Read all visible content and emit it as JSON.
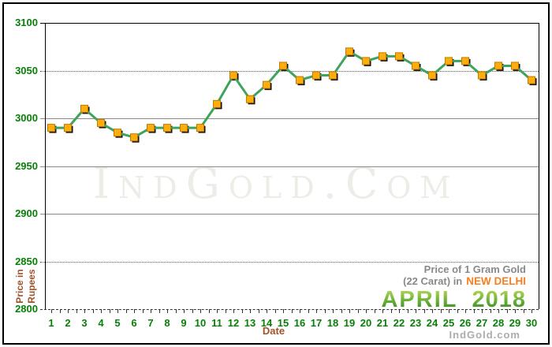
{
  "watermark": "IndGold.Com",
  "footer_brand": "IndGold.com",
  "annotation": {
    "line1": "Price of 1 Gram Gold",
    "line2_prefix": "(22 Carat) in",
    "line2_highlight": "NEW DELHI",
    "month": "APRIL",
    "year": "2018"
  },
  "axes": {
    "y_title_line1": "Price in",
    "y_title_line2": "Rupees",
    "x_title": "Date"
  },
  "colors": {
    "tick_label_green": "#088008",
    "axis_title_brown": "#A0522D",
    "annotation_gray": "#898989",
    "city_orange": "#F57F21",
    "line_green": "#3EA35C",
    "marker_fill": "#FFAD0D",
    "marker_border": "#BF7B00",
    "watermark_gray": "#EDEDE7",
    "footer_gray": "#ACACAC"
  },
  "chart_data": {
    "type": "line",
    "title": "Price of 1 Gram Gold (22 Carat) in NEW DELHI - APRIL 2018",
    "xlabel": "Date",
    "ylabel": "Price in Rupees",
    "x": [
      1,
      2,
      3,
      4,
      5,
      6,
      7,
      8,
      9,
      10,
      11,
      12,
      13,
      14,
      15,
      16,
      17,
      18,
      19,
      20,
      21,
      22,
      23,
      24,
      25,
      26,
      27,
      28,
      29,
      30
    ],
    "values": [
      2990,
      2990,
      3010,
      2995,
      2985,
      2980,
      2990,
      2990,
      2990,
      2990,
      3015,
      3045,
      3020,
      3035,
      3055,
      3040,
      3045,
      3045,
      3070,
      3060,
      3065,
      3065,
      3055,
      3045,
      3060,
      3060,
      3045,
      3055,
      3055,
      3040
    ],
    "ylim": [
      2800,
      3100
    ],
    "y_ticks": [
      3100,
      3050,
      3000,
      2950,
      2900,
      2850,
      2800
    ],
    "dotted_gridlines": [
      3050,
      2850
    ],
    "grid": "horizontal",
    "legend": "none"
  }
}
